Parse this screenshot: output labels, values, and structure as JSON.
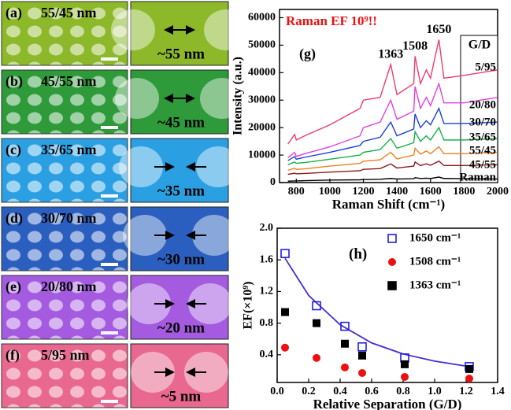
{
  "panels": [
    {
      "label": "(a)",
      "ratio": "55/45 nm",
      "gap": "~55 nm",
      "color": "#8cb82a"
    },
    {
      "label": "(b)",
      "ratio": "45/55 nm",
      "gap": "~45 nm",
      "color": "#2e9a3a"
    },
    {
      "label": "(c)",
      "ratio": "35/65 nm",
      "gap": "~35 nm",
      "color": "#2aa0e2"
    },
    {
      "label": "(d)",
      "ratio": "30/70 nm",
      "gap": "~30 nm",
      "color": "#2b5fbf"
    },
    {
      "label": "(e)",
      "ratio": "20/80 nm",
      "gap": "~20 nm",
      "color": "#a55be0"
    },
    {
      "label": "(f)",
      "ratio": "5/95 nm",
      "gap": "~5 nm",
      "color": "#e8688f"
    }
  ],
  "chart_data": [
    {
      "type": "line",
      "label": "(g)",
      "title": "Raman EF 10⁹!!",
      "xlabel": "Raman Shift (cm⁻¹)",
      "ylabel": "Intensity (a.u.)",
      "legend_title": "G/D",
      "annotations": [
        {
          "text": "1363",
          "x": 1363
        },
        {
          "text": "1508",
          "x": 1508
        },
        {
          "text": "1650",
          "x": 1650
        }
      ],
      "xlim": [
        700,
        2000
      ],
      "xticks": [
        800,
        1000,
        1200,
        1400,
        1600,
        1800,
        2000
      ],
      "ylim": [
        0,
        63000
      ],
      "yticks": [
        0,
        10000,
        20000,
        30000,
        40000,
        50000,
        60000
      ],
      "x": [
        750,
        790,
        800,
        850,
        1000,
        1180,
        1200,
        1300,
        1363,
        1400,
        1500,
        1508,
        1540,
        1575,
        1600,
        1650,
        1680,
        1800,
        2000
      ],
      "series": [
        {
          "name": "5/95",
          "color": "#ee3b6e",
          "values": [
            14000,
            17500,
            15500,
            17000,
            21000,
            27000,
            30000,
            31000,
            43000,
            32000,
            36000,
            46000,
            36000,
            41000,
            38000,
            52000,
            38000,
            39000,
            41000
          ]
        },
        {
          "name": "20/80",
          "color": "#e040e0",
          "values": [
            9000,
            11000,
            9500,
            10500,
            13000,
            17000,
            20000,
            22000,
            30000,
            23000,
            26000,
            35000,
            27000,
            31000,
            28000,
            36000,
            29000,
            29000,
            31000
          ]
        },
        {
          "name": "30/70",
          "color": "#1a3fe0",
          "values": [
            8000,
            9500,
            8500,
            9200,
            11000,
            13500,
            15000,
            16500,
            22000,
            17000,
            19500,
            25000,
            20000,
            22500,
            21000,
            27000,
            21500,
            21500,
            22000
          ]
        },
        {
          "name": "35/65",
          "color": "#18b04a",
          "values": [
            6500,
            7500,
            7000,
            7300,
            8500,
            10000,
            11000,
            12000,
            16000,
            12500,
            14500,
            18500,
            15000,
            17000,
            15500,
            20000,
            15500,
            15500,
            16000
          ]
        },
        {
          "name": "55/45",
          "color": "#f08020",
          "values": [
            4500,
            5200,
            4800,
            5000,
            6000,
            7000,
            7800,
            8300,
            11000,
            8600,
            10000,
            12500,
            10300,
            11500,
            10500,
            13000,
            10500,
            10500,
            11000
          ]
        },
        {
          "name": "45/55",
          "color": "#8b1a1a",
          "values": [
            3000,
            3400,
            3200,
            3300,
            3800,
            4300,
            4800,
            5100,
            6800,
            5300,
            6000,
            7500,
            6200,
            6800,
            6300,
            7800,
            6200,
            6200,
            6500
          ]
        },
        {
          "name": "Raman",
          "color": "#000000",
          "values": [
            500,
            600,
            600,
            700,
            900,
            1000,
            1100,
            1200,
            1500,
            1300,
            1400,
            1800,
            1500,
            1600,
            1500,
            2000,
            1500,
            1400,
            1300
          ]
        }
      ]
    },
    {
      "type": "scatter",
      "label": "(h)",
      "xlabel": "Relative Separation (G/D)",
      "ylabel": "EF(×10⁹)",
      "xlim": [
        0,
        1.4
      ],
      "xticks": [
        {
          "value": 0,
          "label": "0.0"
        },
        0.2,
        0.4,
        0.6,
        0.8,
        {
          "value": 1,
          "label": "1.0"
        },
        1.2,
        1.4
      ],
      "ylim": [
        0.05,
        2.0
      ],
      "yticks": [
        0.4,
        0.8,
        1.2,
        1.6,
        {
          "value": 2,
          "label": "2.0"
        }
      ],
      "x": [
        0.05,
        0.25,
        0.43,
        0.54,
        0.81,
        1.22
      ],
      "series": [
        {
          "name": "1650  cm⁻¹",
          "color": "#2020e0",
          "marker": "square-open",
          "values": [
            1.68,
            1.02,
            0.76,
            0.5,
            0.36,
            0.25
          ]
        },
        {
          "name": "1508  cm⁻¹",
          "color": "#ee1010",
          "marker": "circle",
          "values": [
            0.49,
            0.36,
            0.24,
            0.17,
            0.12,
            0.1
          ]
        },
        {
          "name": "1363  cm⁻¹",
          "color": "#000000",
          "marker": "square",
          "values": [
            0.94,
            0.8,
            0.54,
            0.39,
            0.28,
            0.22
          ]
        }
      ],
      "fit": {
        "color": "#4a2ad0",
        "x": [
          0.05,
          0.2,
          0.4,
          0.6,
          0.8,
          1.0,
          1.22
        ],
        "values": [
          1.62,
          1.15,
          0.78,
          0.55,
          0.41,
          0.32,
          0.25
        ]
      }
    }
  ]
}
